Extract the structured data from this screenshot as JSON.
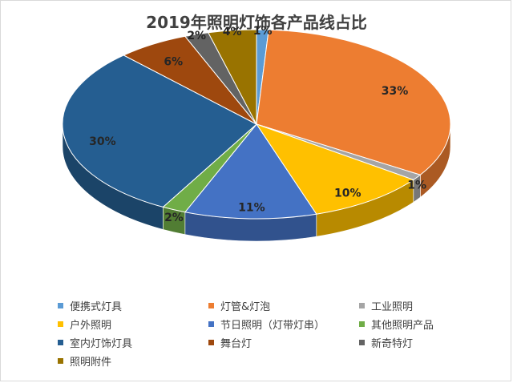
{
  "chart_data": {
    "type": "pie",
    "title": "2019年照明灯饰各产品线占比",
    "slices": [
      {
        "label": "便携式灯具",
        "value": 1,
        "data_label": "1%",
        "color": "#5b9bd5"
      },
      {
        "label": "灯管&灯泡",
        "value": 33,
        "data_label": "33%",
        "color": "#ed7d31"
      },
      {
        "label": "工业照明",
        "value": 1,
        "data_label": "1%",
        "color": "#a5a5a5"
      },
      {
        "label": "户外照明",
        "value": 10,
        "data_label": "10%",
        "color": "#ffc000"
      },
      {
        "label": "节日照明（灯带灯串）",
        "value": 11,
        "data_label": "11%",
        "color": "#4472c4"
      },
      {
        "label": "其他照明产品",
        "value": 2,
        "data_label": "2%",
        "color": "#70ad47"
      },
      {
        "label": "室内灯饰灯具",
        "value": 30,
        "data_label": "30%",
        "color": "#255e91"
      },
      {
        "label": "舞台灯",
        "value": 6,
        "data_label": "6%",
        "color": "#9e480e"
      },
      {
        "label": "新奇特灯",
        "value": 2,
        "data_label": "2%",
        "color": "#636363"
      },
      {
        "label": "照明附件",
        "value": 4,
        "data_label": "4%",
        "color": "#997300"
      }
    ],
    "legend_position": "bottom"
  }
}
